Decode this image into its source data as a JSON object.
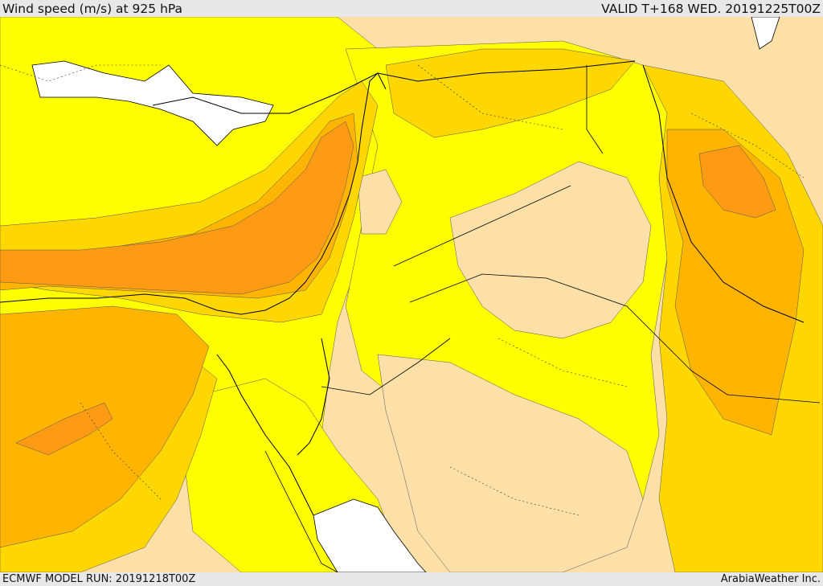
{
  "header": {
    "title": "Wind speed (m/s) at 925 hPa",
    "valid": "VALID T+168 WED. 20191225T00Z"
  },
  "footer": {
    "model_run": "ECMWF MODEL RUN: 20191218T00Z",
    "credit": "ArabiaWeather Inc."
  },
  "palette": {
    "sea": "#ffffff",
    "calm": "#fde0a8",
    "light": "#ffff00",
    "moderate": "#ffd700",
    "fresh": "#ffb400",
    "strong": "#ff9a14",
    "border": "#000000"
  }
}
